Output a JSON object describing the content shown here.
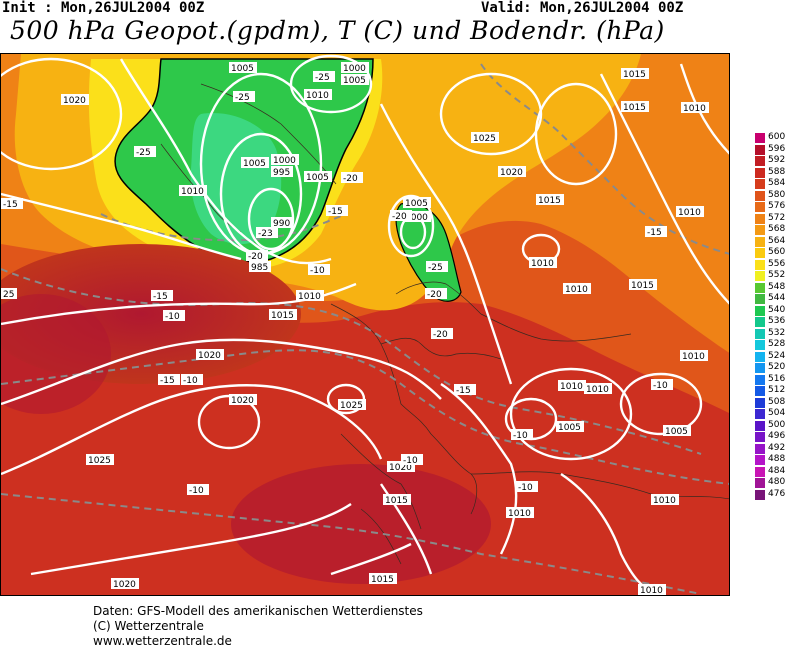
{
  "header": {
    "init": "Init : Mon,26JUL2004 00Z",
    "valid": "Valid: Mon,26JUL2004 00Z",
    "title": "500 hPa Geopot.(gpdm), T (C) und Bodendr. (hPa)"
  },
  "legend": {
    "values": [
      "600",
      "596",
      "592",
      "588",
      "584",
      "580",
      "576",
      "572",
      "568",
      "564",
      "560",
      "556",
      "552",
      "548",
      "544",
      "540",
      "536",
      "532",
      "528",
      "524",
      "520",
      "516",
      "512",
      "508",
      "504",
      "500",
      "496",
      "492",
      "488",
      "484",
      "480",
      "476"
    ],
    "colors": [
      "#c8006e",
      "#b50f2a",
      "#c21e24",
      "#cd2a20",
      "#d63c1c",
      "#e0541a",
      "#e86a18",
      "#ef8216",
      "#f49a14",
      "#f7b212",
      "#facb10",
      "#fbe01a",
      "#f0f020",
      "#58c832",
      "#40b840",
      "#1ec850",
      "#14c88c",
      "#14c8b4",
      "#14c8dc",
      "#14b4f0",
      "#1496f0",
      "#1478f0",
      "#145ae6",
      "#1e3cd8",
      "#3c28d2",
      "#5a14c8",
      "#7814c8",
      "#9614c8",
      "#b414c8",
      "#c814b4",
      "#a01496",
      "#781478"
    ]
  },
  "isobar_labels": [
    {
      "t": "1020"
    },
    {
      "t": "1005"
    },
    {
      "t": "1000"
    },
    {
      "t": "1005"
    },
    {
      "t": "1010"
    },
    {
      "t": "1010"
    },
    {
      "t": "1005"
    },
    {
      "t": "1000"
    },
    {
      "t": "995"
    },
    {
      "t": "1005"
    },
    {
      "t": "990"
    },
    {
      "t": "985"
    },
    {
      "t": "1005"
    },
    {
      "t": "1000"
    },
    {
      "t": "1015"
    },
    {
      "t": "1025"
    },
    {
      "t": "1020"
    },
    {
      "t": "1015"
    },
    {
      "t": "1015"
    },
    {
      "t": "1010"
    },
    {
      "t": "1010"
    },
    {
      "t": "1010"
    },
    {
      "t": "1010"
    },
    {
      "t": "1010"
    },
    {
      "t": "1015"
    },
    {
      "t": "1010"
    },
    {
      "t": "1015"
    },
    {
      "t": "1020"
    },
    {
      "t": "1020"
    },
    {
      "t": "1025"
    },
    {
      "t": "1010"
    },
    {
      "t": "1005"
    },
    {
      "t": "1010"
    },
    {
      "t": "1005"
    },
    {
      "t": "1025"
    },
    {
      "t": "1020"
    },
    {
      "t": "1015"
    },
    {
      "t": "1010"
    },
    {
      "t": "1010"
    },
    {
      "t": "1020"
    },
    {
      "t": "1015"
    },
    {
      "t": "1010"
    },
    {
      "t": "25"
    }
  ],
  "temp_labels": [
    {
      "t": "-25"
    },
    {
      "t": "-25"
    },
    {
      "t": "-25"
    },
    {
      "t": "-20"
    },
    {
      "t": "-15"
    },
    {
      "t": "-20"
    },
    {
      "t": "-15"
    },
    {
      "t": "-23"
    },
    {
      "t": "-20"
    },
    {
      "t": "-10"
    },
    {
      "t": "-20"
    },
    {
      "t": "-25"
    },
    {
      "t": "-20"
    },
    {
      "t": "-15"
    },
    {
      "t": "-10"
    },
    {
      "t": "-15"
    },
    {
      "t": "-10"
    },
    {
      "t": "-10"
    },
    {
      "t": "-10"
    },
    {
      "t": "-15"
    },
    {
      "t": "-10"
    },
    {
      "t": "-10"
    },
    {
      "t": "-15"
    },
    {
      "t": "-10"
    }
  ],
  "footer": {
    "line1": "Daten: GFS-Modell des amerikanischen Wetterdienstes",
    "line2": "(C) Wetterzentrale",
    "line3": "www.wetterzentrale.de"
  }
}
